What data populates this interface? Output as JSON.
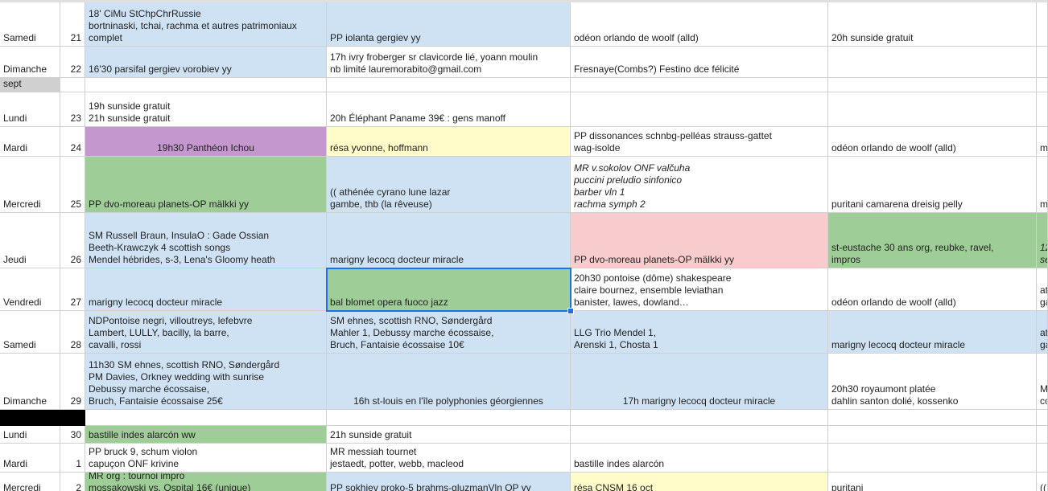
{
  "colors": {
    "blue": "#cfe2f3",
    "green": "#9fcd97",
    "purple": "#c497cf",
    "yellow": "#fffcc9",
    "pink": "#f8cccc",
    "gray": "#d0d0d0",
    "black": "#000000",
    "selection": "#1a73e8"
  },
  "rows": [
    {
      "day": "Samedi",
      "num": "21",
      "cells": [
        {
          "text": "18' CiMu StChpChrRussie\nbortninaski, tchai, rachma et autres patrimoniaux\ncomplet",
          "color": "blue"
        },
        {
          "text": "PP iolanta gergiev yy",
          "color": "blue"
        },
        {
          "text": "odéon orlando de woolf (alld)"
        },
        {
          "text": "20h sunside gratuit"
        },
        {
          "text": ""
        }
      ]
    },
    {
      "day": "Dimanche",
      "num": "22",
      "cells": [
        {
          "text": "16'30 parsifal gergiev vorobiev yy",
          "color": "blue"
        },
        {
          "text": "17h ivry froberger sr clavicorde lié, yoann moulin\nnb limité lauremorabito@gmail.com"
        },
        {
          "text": "Fresnaye(Combs?) Festino dce félicité"
        },
        {
          "text": ""
        },
        {
          "text": ""
        }
      ]
    },
    {
      "day": "sept",
      "num": "",
      "label": true,
      "cells": [
        {
          "text": ""
        },
        {
          "text": ""
        },
        {
          "text": ""
        },
        {
          "text": ""
        },
        {
          "text": ""
        }
      ]
    },
    {
      "day": "Lundi",
      "num": "23",
      "cells": [
        {
          "text": "19h sunside gratuit\n21h sunside gratuit"
        },
        {
          "text": "20h Éléphant Paname 39€ : gens manoff"
        },
        {
          "text": ""
        },
        {
          "text": ""
        },
        {
          "text": ""
        }
      ]
    },
    {
      "day": "Mardi",
      "num": "24",
      "cells": [
        {
          "text": "19h30 Panthéon Ichou",
          "color": "purple",
          "align": "center"
        },
        {
          "text": "résa yvonne, hoffmann",
          "color": "yellow"
        },
        {
          "text": "PP dissonances schnbg-pelléas strauss-gattet\nwag-isolde"
        },
        {
          "text": "odéon orlando de woolf (alld)"
        },
        {
          "text": "m"
        }
      ]
    },
    {
      "day": "Mercredi",
      "num": "25",
      "cells": [
        {
          "text": "PP dvo-moreau planets-OP mälkki yy",
          "color": "green"
        },
        {
          "text": "(( athénée cyrano lune lazar\ngambe, thb (la rêveuse)",
          "color": "blue"
        },
        {
          "text": "MR v.sokolov ONF valčuha\npuccini preludio sinfonico\nbarber vln 1\nrachma symph 2",
          "italic": true
        },
        {
          "text": "puritani camarena dreisig pelly"
        },
        {
          "text": "m"
        }
      ]
    },
    {
      "day": "Jeudi",
      "num": "26",
      "cells": [
        {
          "text": "SM Russell Braun, InsulaO : Gade Ossian\nBeeth-Krawczyk 4 scottish songs\nMendel hébrides, s-3, Lena's Gloomy heath",
          "color": "blue"
        },
        {
          "text": "marigny lecocq docteur miracle",
          "color": "blue"
        },
        {
          "text": "PP dvo-moreau planets-OP mälkki yy",
          "color": "pink"
        },
        {
          "text": "st-eustache 30 ans org, reubke, ravel,\nimpros",
          "color": "green"
        },
        {
          "text": "12\nse",
          "color": "green",
          "italic": true
        }
      ]
    },
    {
      "day": "Vendredi",
      "num": "27",
      "cells": [
        {
          "text": "marigny lecocq docteur miracle",
          "color": "blue"
        },
        {
          "text": "bal blomet opera fuoco jazz",
          "color": "green",
          "selected": true
        },
        {
          "text": "20h30 pontoise (dôme) shakespeare\nclaire bournez, ensemble leviathan\nbanister, lawes, dowland…"
        },
        {
          "text": "odéon orlando de woolf (alld)"
        },
        {
          "text": "at\nga"
        }
      ]
    },
    {
      "day": "Samedi",
      "num": "28",
      "cells": [
        {
          "text": "NDPontoise negri, villoutreys, lefebvre\nLambert, LULLY, bacilly, la barre,\ncavalli, rossi",
          "color": "blue"
        },
        {
          "text": "SM ehnes, scottish RNO, Søndergård\nMahler 1, Debussy marche écossaise,\nBruch, Fantaisie écossaise 10€",
          "color": "blue"
        },
        {
          "text": "LLG Trio Mendel 1,\nArenski 1, Chosta 1",
          "color": "blue"
        },
        {
          "text": "marigny lecocq docteur miracle",
          "color": "blue"
        },
        {
          "text": "at\nga",
          "color": "blue"
        }
      ]
    },
    {
      "day": "Dimanche",
      "num": "29",
      "cells": [
        {
          "text": "11h30 SM ehnes, scottish RNO, Søndergård\nPM Davies, Orkney wedding with sunrise\nDebussy marche écossaise,\nBruch, Fantaisie écossaise 25€",
          "color": "blue"
        },
        {
          "text": "16h st-louis en l'île polyphonies géorgiennes",
          "color": "blue",
          "align": "center"
        },
        {
          "text": "17h marigny lecocq docteur miracle",
          "color": "blue",
          "align": "center"
        },
        {
          "text": "20h30 royaumont platée\ndahlin santon dolié, kossenko"
        },
        {
          "text": "M\nco"
        }
      ]
    },
    {
      "day": "",
      "num": "",
      "dark": true,
      "cells": [
        {
          "text": ""
        },
        {
          "text": ""
        },
        {
          "text": ""
        },
        {
          "text": ""
        },
        {
          "text": ""
        }
      ]
    },
    {
      "day": "Lundi",
      "num": "30",
      "cells": [
        {
          "text": "bastille indes alarcón ww",
          "color": "green"
        },
        {
          "text": "21h sunside gratuit"
        },
        {
          "text": ""
        },
        {
          "text": ""
        },
        {
          "text": ""
        }
      ]
    },
    {
      "day": "Mardi",
      "num": "1",
      "cells": [
        {
          "text": "PP bruck 9, schum violon\ncapuçon ONF krivine"
        },
        {
          "text": "MR messiah tournet\njestaedt, potter, webb, macleod"
        },
        {
          "text": "bastille indes alarcón"
        },
        {
          "text": ""
        },
        {
          "text": ""
        }
      ]
    },
    {
      "day": "Mercredi",
      "num": "2",
      "cells": [
        {
          "text": "MR org : tournoi impro\nmossakowski vs. Ospital 16€ (unique)",
          "color": "green"
        },
        {
          "text": "PP sokhiev proko-5 brahms-gluzmanVln OP yy",
          "color": "blue"
        },
        {
          "text": "résa CNSM 16 oct",
          "color": "yellow"
        },
        {
          "text": "puritani"
        },
        {
          "text": "(("
        }
      ]
    }
  ]
}
